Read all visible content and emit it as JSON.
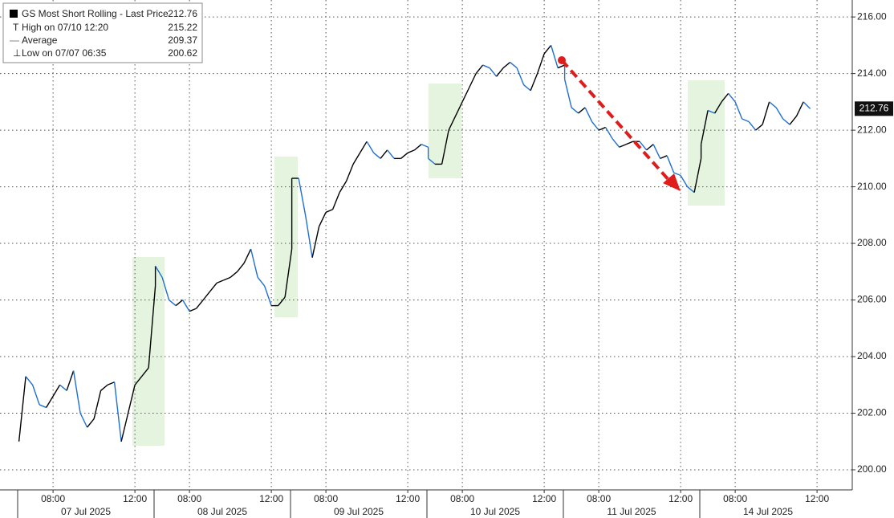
{
  "chart_data": {
    "type": "line",
    "legend_stats": [
      {
        "label": "High on 07/10 12:20",
        "value": 215.22
      },
      {
        "label": "Average",
        "value": 209.37
      },
      {
        "label": "Low on 07/07 06:35",
        "value": 200.62
      }
    ],
    "days": [
      "07 Jul 2025",
      "08 Jul 2025",
      "09 Jul 2025",
      "10 Jul 2025",
      "11 Jul 2025",
      "14 Jul 2025"
    ],
    "x": [
      "07 Jul 2025 06:20",
      "07 Jul 2025 06:40",
      "07 Jul 2025 07:00",
      "07 Jul 2025 07:20",
      "07 Jul 2025 07:40",
      "07 Jul 2025 08:00",
      "07 Jul 2025 08:20",
      "07 Jul 2025 08:40",
      "07 Jul 2025 09:00",
      "07 Jul 2025 09:20",
      "07 Jul 2025 09:40",
      "07 Jul 2025 10:00",
      "07 Jul 2025 10:20",
      "07 Jul 2025 10:40",
      "07 Jul 2025 11:00",
      "07 Jul 2025 11:20",
      "07 Jul 2025 11:40",
      "07 Jul 2025 12:00",
      "07 Jul 2025 12:20",
      "07 Jul 2025 12:40",
      "07 Jul 2025 13:00",
      "08 Jul 2025 06:20",
      "08 Jul 2025 06:40",
      "08 Jul 2025 07:00",
      "08 Jul 2025 07:20",
      "08 Jul 2025 07:40",
      "08 Jul 2025 08:00",
      "08 Jul 2025 08:20",
      "08 Jul 2025 08:40",
      "08 Jul 2025 09:00",
      "08 Jul 2025 09:20",
      "08 Jul 2025 09:40",
      "08 Jul 2025 10:00",
      "08 Jul 2025 10:20",
      "08 Jul 2025 10:40",
      "08 Jul 2025 11:00",
      "08 Jul 2025 11:20",
      "08 Jul 2025 11:40",
      "08 Jul 2025 12:00",
      "08 Jul 2025 12:20",
      "08 Jul 2025 12:40",
      "08 Jul 2025 13:00",
      "09 Jul 2025 06:20",
      "09 Jul 2025 06:40",
      "09 Jul 2025 07:00",
      "09 Jul 2025 07:20",
      "09 Jul 2025 07:40",
      "09 Jul 2025 08:00",
      "09 Jul 2025 08:20",
      "09 Jul 2025 08:40",
      "09 Jul 2025 09:00",
      "09 Jul 2025 09:20",
      "09 Jul 2025 09:40",
      "09 Jul 2025 10:00",
      "09 Jul 2025 10:20",
      "09 Jul 2025 10:40",
      "09 Jul 2025 11:00",
      "09 Jul 2025 11:20",
      "09 Jul 2025 11:40",
      "09 Jul 2025 12:00",
      "09 Jul 2025 12:20",
      "09 Jul 2025 12:40",
      "09 Jul 2025 13:00",
      "10 Jul 2025 06:20",
      "10 Jul 2025 06:40",
      "10 Jul 2025 07:00",
      "10 Jul 2025 07:20",
      "10 Jul 2025 07:40",
      "10 Jul 2025 08:00",
      "10 Jul 2025 08:20",
      "10 Jul 2025 08:40",
      "10 Jul 2025 09:00",
      "10 Jul 2025 09:20",
      "10 Jul 2025 09:40",
      "10 Jul 2025 10:00",
      "10 Jul 2025 10:20",
      "10 Jul 2025 10:40",
      "10 Jul 2025 11:00",
      "10 Jul 2025 11:20",
      "10 Jul 2025 11:40",
      "10 Jul 2025 12:00",
      "10 Jul 2025 12:20",
      "10 Jul 2025 12:40",
      "10 Jul 2025 13:00",
      "11 Jul 2025 06:20",
      "11 Jul 2025 06:40",
      "11 Jul 2025 07:00",
      "11 Jul 2025 07:20",
      "11 Jul 2025 07:40",
      "11 Jul 2025 08:00",
      "11 Jul 2025 08:20",
      "11 Jul 2025 08:40",
      "11 Jul 2025 09:00",
      "11 Jul 2025 09:20",
      "11 Jul 2025 09:40",
      "11 Jul 2025 10:00",
      "11 Jul 2025 10:20",
      "11 Jul 2025 10:40",
      "11 Jul 2025 11:00",
      "11 Jul 2025 11:20",
      "11 Jul 2025 11:40",
      "11 Jul 2025 12:00",
      "11 Jul 2025 12:20",
      "11 Jul 2025 12:40",
      "11 Jul 2025 13:00",
      "14 Jul 2025 06:20",
      "14 Jul 2025 06:40",
      "14 Jul 2025 07:00",
      "14 Jul 2025 07:20",
      "14 Jul 2025 07:40",
      "14 Jul 2025 08:00",
      "14 Jul 2025 08:20",
      "14 Jul 2025 08:40",
      "14 Jul 2025 09:00",
      "14 Jul 2025 09:20",
      "14 Jul 2025 09:40",
      "14 Jul 2025 10:00",
      "14 Jul 2025 10:20",
      "14 Jul 2025 10:40",
      "14 Jul 2025 11:00",
      "14 Jul 2025 11:20",
      "14 Jul 2025 11:40"
    ],
    "series": [
      {
        "name": "GS Most Short Rolling - Last Price",
        "color": "#000000",
        "down_color": "#1f6fd1",
        "last_value": 212.76,
        "values": [
          201.0,
          203.3,
          203.0,
          202.3,
          202.2,
          202.6,
          203.0,
          202.8,
          203.5,
          202.0,
          201.5,
          201.8,
          202.8,
          203.0,
          203.1,
          201.0,
          202.0,
          203.0,
          203.3,
          203.6,
          206.5,
          207.2,
          206.8,
          206.0,
          205.8,
          206.0,
          205.6,
          205.7,
          206.0,
          206.3,
          206.6,
          206.7,
          206.8,
          207.0,
          207.3,
          207.8,
          206.8,
          206.5,
          205.8,
          205.8,
          206.1,
          207.8,
          210.3,
          210.3,
          209.0,
          207.5,
          208.6,
          209.1,
          209.2,
          209.8,
          210.2,
          210.8,
          211.2,
          211.6,
          211.2,
          211.0,
          211.3,
          211.0,
          211.0,
          211.2,
          211.3,
          211.5,
          211.4,
          211.0,
          210.8,
          210.8,
          212.0,
          212.5,
          213.0,
          213.5,
          214.0,
          214.3,
          214.2,
          213.9,
          214.2,
          214.4,
          214.2,
          213.6,
          213.4,
          214.0,
          214.7,
          215.0,
          214.2,
          214.3,
          213.8,
          212.8,
          212.6,
          212.8,
          212.3,
          212.0,
          212.1,
          211.7,
          211.4,
          211.5,
          211.6,
          211.6,
          211.3,
          211.5,
          211.0,
          211.1,
          210.5,
          210.4,
          210.0,
          209.8,
          211.0,
          211.5,
          212.7,
          212.6,
          213.0,
          213.3,
          213.0,
          212.4,
          212.3,
          212.0,
          212.2,
          213.0,
          212.8,
          212.4,
          212.2,
          212.5,
          213.0,
          212.76
        ]
      }
    ],
    "ylim": [
      199.29,
      216.6
    ],
    "yticks": [
      {
        "value": 200,
        "label": "200.00"
      },
      {
        "value": 202,
        "label": "202.00"
      },
      {
        "value": 204,
        "label": "204.00"
      },
      {
        "value": 206,
        "label": "206.00"
      },
      {
        "value": 208,
        "label": "208.00"
      },
      {
        "value": 210,
        "label": "210.00"
      },
      {
        "value": 212,
        "label": "212.00"
      },
      {
        "value": 214,
        "label": "214.00"
      },
      {
        "value": 216,
        "label": "216.00"
      }
    ],
    "xticks": [
      {
        "value": "07 Jul 2025 08:00",
        "label": "08:00"
      },
      {
        "value": "07 Jul 2025 12:00",
        "label": "12:00"
      },
      {
        "value": "08 Jul 2025 08:00",
        "label": "08:00"
      },
      {
        "value": "08 Jul 2025 12:00",
        "label": "12:00"
      },
      {
        "value": "09 Jul 2025 08:00",
        "label": "08:00"
      },
      {
        "value": "09 Jul 2025 12:00",
        "label": "12:00"
      },
      {
        "value": "10 Jul 2025 08:00",
        "label": "08:00"
      },
      {
        "value": "10 Jul 2025 12:00",
        "label": "12:00"
      },
      {
        "value": "11 Jul 2025 08:00",
        "label": "08:00"
      },
      {
        "value": "11 Jul 2025 12:00",
        "label": "12:00"
      },
      {
        "value": "14 Jul 2025 08:00",
        "label": "08:00"
      },
      {
        "value": "14 Jul 2025 12:00",
        "label": "12:00"
      }
    ],
    "grid": true
  }
}
